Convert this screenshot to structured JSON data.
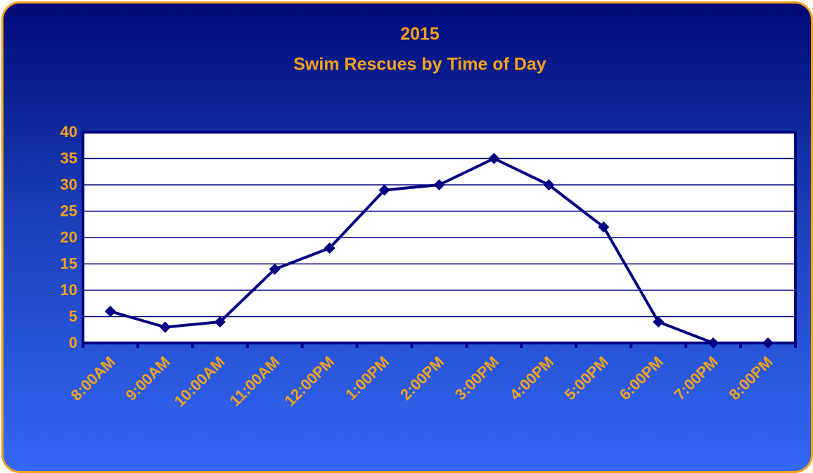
{
  "chart_data": {
    "type": "line",
    "title": "2015",
    "subtitle": "Swim Rescues by Time of Day",
    "categories": [
      "8:00AM",
      "9:00AM",
      "10:00AM",
      "11:00AM",
      "12:00PM",
      "1:00PM",
      "2:00PM",
      "3:00PM",
      "4:00PM",
      "5:00PM",
      "6:00PM",
      "7:00PM",
      "8:00PM"
    ],
    "series": [
      {
        "name": "Swim Rescues",
        "color": "#000080",
        "values": [
          6,
          3,
          4,
          14,
          18,
          29,
          30,
          35,
          30,
          22,
          4,
          0,
          0
        ]
      }
    ],
    "ylim": [
      0,
      40
    ],
    "yticks": [
      0,
      5,
      10,
      15,
      20,
      25,
      30,
      35,
      40
    ],
    "grid": true
  }
}
